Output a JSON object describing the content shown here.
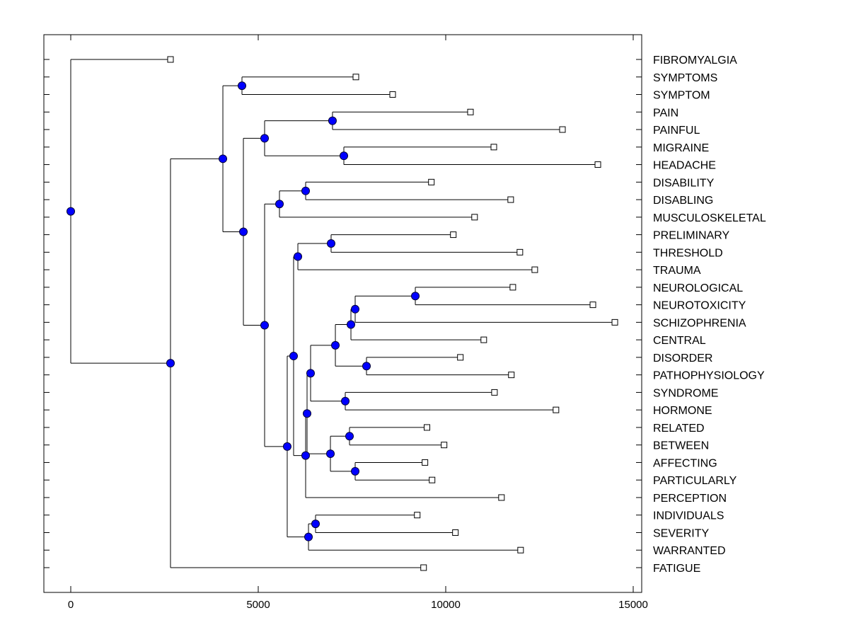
{
  "chart_data": {
    "type": "dendrogram",
    "title": "",
    "xlabel": "",
    "ylabel": "",
    "xlim": [
      -700,
      15300
    ],
    "x_ticks": [
      0,
      5000,
      10000,
      15000
    ],
    "x_tick_labels": [
      "0",
      "5000",
      "10000",
      "15000"
    ],
    "grid": false,
    "node_color": "#0000ff",
    "leaf_marker": "open-square",
    "leaves": [
      {
        "label": "FIBROMYALGIA",
        "value": 2660
      },
      {
        "label": "SYMPTOMS",
        "value": 7604
      },
      {
        "label": "SYMPTOM",
        "value": 8585
      },
      {
        "label": "PAIN",
        "value": 10660
      },
      {
        "label": "PAINFUL",
        "value": 13113
      },
      {
        "label": "MIGRAINE",
        "value": 11283
      },
      {
        "label": "HEADACHE",
        "value": 14057
      },
      {
        "label": "DISABILITY",
        "value": 9617
      },
      {
        "label": "DISABLING",
        "value": 11733
      },
      {
        "label": "MUSCULOSKELETAL",
        "value": 10770
      },
      {
        "label": "PRELIMINARY",
        "value": 10202
      },
      {
        "label": "THRESHOLD",
        "value": 11978
      },
      {
        "label": "TRAUMA",
        "value": 12375
      },
      {
        "label": "NEUROLOGICAL",
        "value": 11790
      },
      {
        "label": "NEUROTOXICITY",
        "value": 13925
      },
      {
        "label": "SCHIZOPHRENIA",
        "value": 14510
      },
      {
        "label": "CENTRAL",
        "value": 11015
      },
      {
        "label": "DISORDER",
        "value": 10390
      },
      {
        "label": "PATHOPHYSIOLOGY",
        "value": 11750
      },
      {
        "label": "SYNDROME",
        "value": 11300
      },
      {
        "label": "HORMONE",
        "value": 12940
      },
      {
        "label": "RELATED",
        "value": 9500
      },
      {
        "label": "BETWEEN",
        "value": 9956
      },
      {
        "label": "AFFECTING",
        "value": 9446
      },
      {
        "label": "PARTICULARLY",
        "value": 9636
      },
      {
        "label": "PERCEPTION",
        "value": 11487
      },
      {
        "label": "INDIVIDUALS",
        "value": 9240
      },
      {
        "label": "SEVERITY",
        "value": 10258
      },
      {
        "label": "WARRANTED",
        "value": 11997
      },
      {
        "label": "FATIGUE",
        "value": 9410
      }
    ],
    "merges": [
      {
        "id": "m_sym",
        "value": 4566,
        "children": [
          "SYMPTOMS",
          "SYMPTOM"
        ]
      },
      {
        "id": "m_pain",
        "value": 6980,
        "children": [
          "PAIN",
          "PAINFUL"
        ]
      },
      {
        "id": "m_mig",
        "value": 7283,
        "children": [
          "MIGRAINE",
          "HEADACHE"
        ]
      },
      {
        "id": "m_painmig",
        "value": 5170,
        "children": [
          "m_pain",
          "m_mig"
        ]
      },
      {
        "id": "m_dis",
        "value": 6264,
        "children": [
          "DISABILITY",
          "DISABLING"
        ]
      },
      {
        "id": "m_dismus",
        "value": 5566,
        "children": [
          "m_dis",
          "MUSCULOSKELETAL"
        ]
      },
      {
        "id": "m_pre",
        "value": 6943,
        "children": [
          "PRELIMINARY",
          "THRESHOLD"
        ]
      },
      {
        "id": "m_pretra",
        "value": 6057,
        "children": [
          "m_pre",
          "TRAUMA"
        ]
      },
      {
        "id": "m_neu",
        "value": 9189,
        "children": [
          "NEUROLOGICAL",
          "NEUROTOXICITY"
        ]
      },
      {
        "id": "m_neu2",
        "value": 7585,
        "children": [
          "m_neu",
          "SCHIZOPHRENIA"
        ]
      },
      {
        "id": "m_neu3",
        "value": 7472,
        "children": [
          "m_neu2",
          "CENTRAL"
        ]
      },
      {
        "id": "m_disord",
        "value": 7887,
        "children": [
          "DISORDER",
          "PATHOPHYSIOLOGY"
        ]
      },
      {
        "id": "m_neu4",
        "value": 7057,
        "children": [
          "m_neu3",
          "m_disord"
        ]
      },
      {
        "id": "m_syn",
        "value": 7321,
        "children": [
          "SYNDROME",
          "HORMONE"
        ]
      },
      {
        "id": "m_neu5",
        "value": 6396,
        "children": [
          "m_neu4",
          "m_syn"
        ]
      },
      {
        "id": "m_rel",
        "value": 7434,
        "children": [
          "RELATED",
          "BETWEEN"
        ]
      },
      {
        "id": "m_aff",
        "value": 7585,
        "children": [
          "AFFECTING",
          "PARTICULARLY"
        ]
      },
      {
        "id": "m_relaff",
        "value": 6925,
        "children": [
          "m_rel",
          "m_aff"
        ]
      },
      {
        "id": "m_mid",
        "value": 6302,
        "children": [
          "m_neu5",
          "m_relaff"
        ]
      },
      {
        "id": "m_mid2",
        "value": 6264,
        "children": [
          "m_mid",
          "PERCEPTION"
        ]
      },
      {
        "id": "m_big",
        "value": 5943,
        "children": [
          "m_pretra",
          "m_mid2"
        ]
      },
      {
        "id": "m_ind",
        "value": 6528,
        "children": [
          "INDIVIDUALS",
          "SEVERITY"
        ]
      },
      {
        "id": "m_ind2",
        "value": 6340,
        "children": [
          "m_ind",
          "WARRANTED"
        ]
      },
      {
        "id": "m_big2",
        "value": 5773,
        "children": [
          "m_big",
          "m_ind2"
        ]
      },
      {
        "id": "m_lower",
        "value": 5170,
        "children": [
          "m_dismus",
          "m_big2"
        ]
      },
      {
        "id": "m_mid3",
        "value": 4604,
        "children": [
          "m_painmig",
          "m_lower"
        ]
      },
      {
        "id": "m_upper",
        "value": 4057,
        "children": [
          "m_sym",
          "m_mid3"
        ]
      },
      {
        "id": "m_main",
        "value": 2660,
        "children": [
          "m_upper",
          "FATIGUE"
        ]
      },
      {
        "id": "m_root",
        "value": 0,
        "children": [
          "FIBROMYALGIA",
          "m_main"
        ]
      }
    ]
  }
}
